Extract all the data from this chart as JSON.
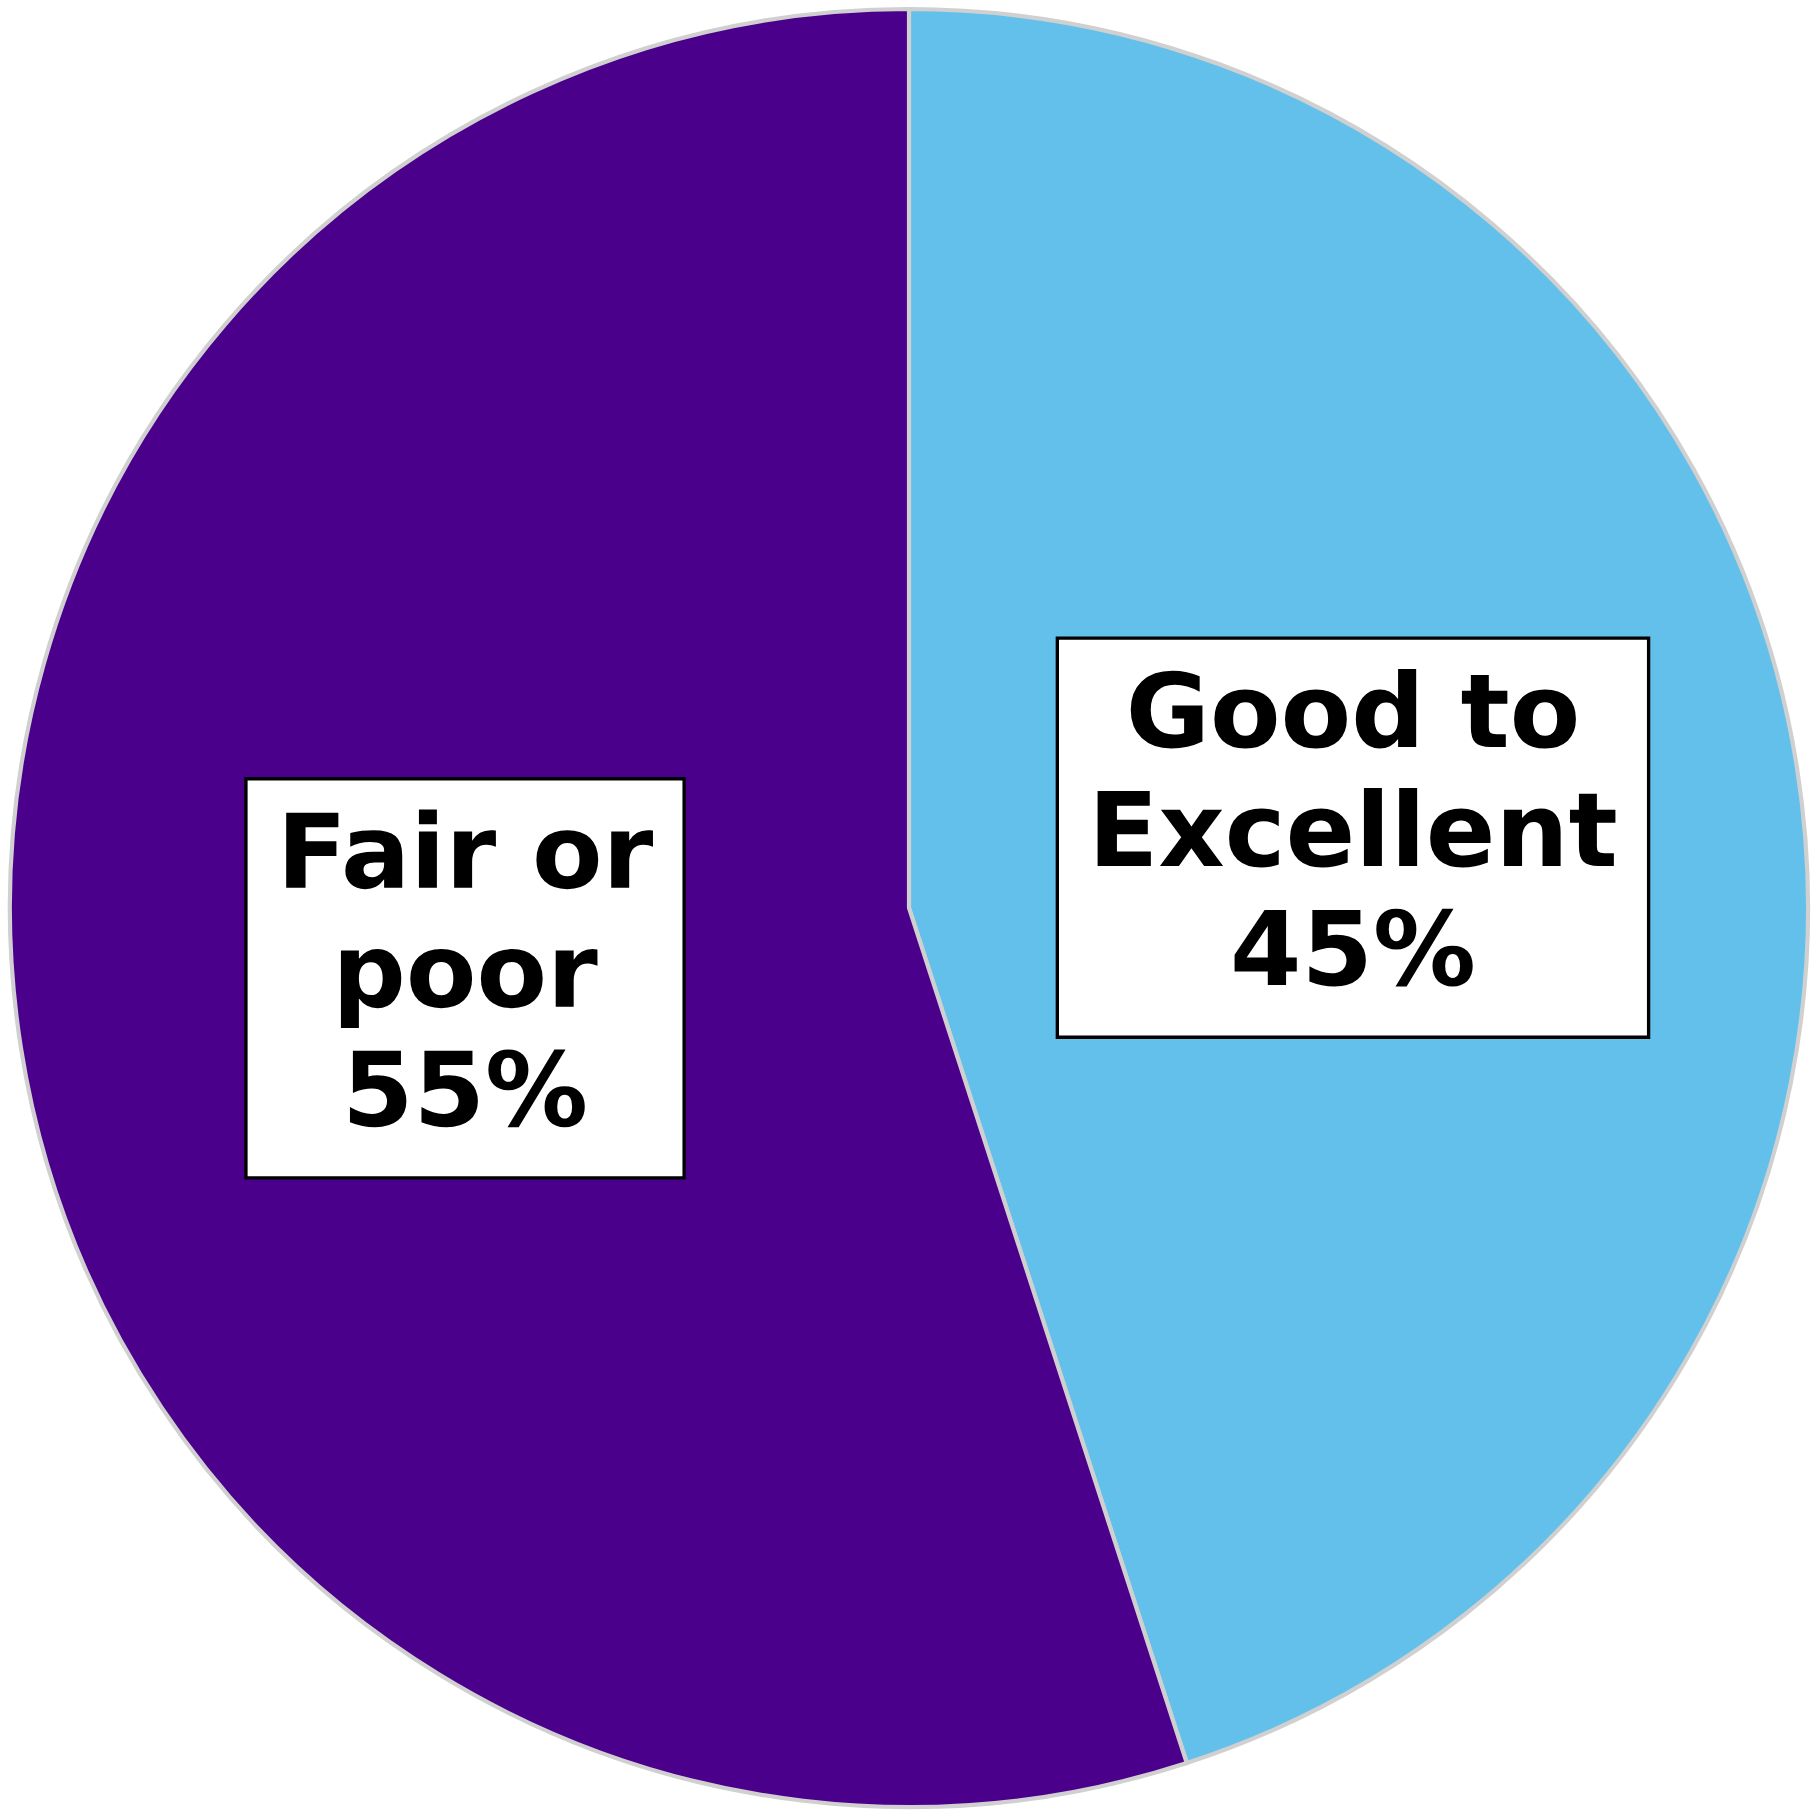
{
  "chart_data": {
    "type": "pie",
    "categories": [
      "Good to Excellent",
      "Fair or poor"
    ],
    "values": [
      45,
      55
    ],
    "value_labels": [
      "45%",
      "55%"
    ],
    "colors": [
      "#63c0eb",
      "#4b008c"
    ]
  }
}
